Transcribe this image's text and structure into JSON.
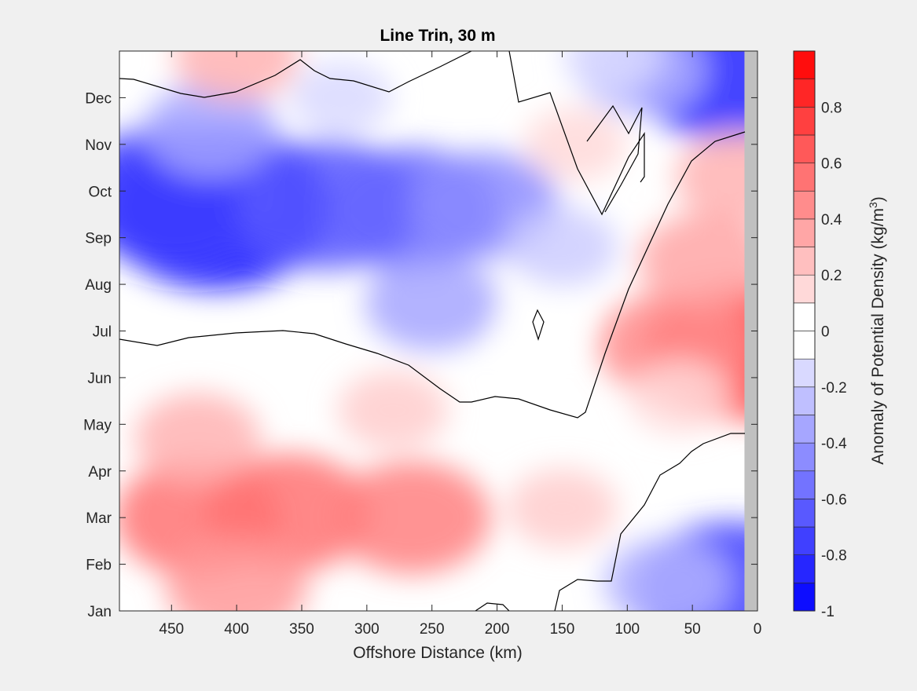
{
  "chart_data": {
    "type": "heatmap",
    "title": "Line Trin, 30 m",
    "xlabel": "Offshore Distance (km)",
    "x_ticks": [
      450,
      400,
      350,
      300,
      250,
      200,
      150,
      100,
      50,
      0
    ],
    "x_tick_labels": [
      "450",
      "400",
      "350",
      "300",
      "250",
      "200",
      "150",
      "100",
      "50",
      "0"
    ],
    "xlim": [
      490,
      0
    ],
    "x_direction": "reversed",
    "ylabel": "",
    "y_tick_labels": [
      "Jan",
      "Feb",
      "Mar",
      "Apr",
      "May",
      "Jun",
      "Jul",
      "Aug",
      "Sep",
      "Oct",
      "Nov",
      "Dec"
    ],
    "y_ticks_month": [
      1,
      2,
      3,
      4,
      5,
      6,
      7,
      8,
      9,
      10,
      11,
      12
    ],
    "ylim_month": [
      1,
      13
    ],
    "colorbar": {
      "label_prefix": "Anomaly of Potential Density (kg/m",
      "label_sup": "3",
      "label_suffix": ")",
      "range": [
        -1,
        1
      ],
      "step": 0.1,
      "tick_values": [
        -1,
        -0.8,
        -0.6,
        -0.4,
        -0.2,
        0,
        0.2,
        0.4,
        0.6,
        0.8
      ],
      "tick_labels": [
        "-1",
        "-0.8",
        "-0.6",
        "-0.4",
        "-0.2",
        "0",
        "0.2",
        "0.4",
        "0.6",
        "0.8"
      ],
      "colormap": "blue-white-red (diverging)"
    },
    "grid": false,
    "zero_contour": true,
    "no_data_region": {
      "x_range_km": [
        10,
        0
      ],
      "color": "#c0c0c0"
    },
    "anomaly_features": [
      {
        "x_km": 415,
        "month": 9.65,
        "value": -0.95
      },
      {
        "x_km": 450,
        "month": 9.9,
        "value": -0.75
      },
      {
        "x_km": 330,
        "month": 9.7,
        "value": -0.65
      },
      {
        "x_km": 265,
        "month": 9.6,
        "value": -0.6
      },
      {
        "x_km": 210,
        "month": 9.7,
        "value": -0.45
      },
      {
        "x_km": 420,
        "month": 11.3,
        "value": -0.35
      },
      {
        "x_km": 320,
        "month": 12.0,
        "value": -0.15
      },
      {
        "x_km": 150,
        "month": 8.8,
        "value": -0.2
      },
      {
        "x_km": 250,
        "month": 7.6,
        "value": -0.35
      },
      {
        "x_km": 20,
        "month": 12.7,
        "value": -0.85
      },
      {
        "x_km": 90,
        "month": 12.6,
        "value": -0.3
      },
      {
        "x_km": 20,
        "month": 1.4,
        "value": -0.75
      },
      {
        "x_km": 70,
        "month": 1.6,
        "value": -0.3
      },
      {
        "x_km": 400,
        "month": 12.9,
        "value": 0.3
      },
      {
        "x_km": 110,
        "month": 12.9,
        "value": -0.15
      },
      {
        "x_km": 430,
        "month": 3.0,
        "value": 0.55
      },
      {
        "x_km": 360,
        "month": 3.1,
        "value": 0.55
      },
      {
        "x_km": 265,
        "month": 3.0,
        "value": 0.5
      },
      {
        "x_km": 150,
        "month": 3.2,
        "value": 0.2
      },
      {
        "x_km": 430,
        "month": 4.7,
        "value": 0.3
      },
      {
        "x_km": 400,
        "month": 1.5,
        "value": 0.4
      },
      {
        "x_km": 280,
        "month": 5.3,
        "value": 0.2
      },
      {
        "x_km": 15,
        "month": 6.55,
        "value": 0.72
      },
      {
        "x_km": 65,
        "month": 6.7,
        "value": 0.45
      },
      {
        "x_km": 15,
        "month": 10.3,
        "value": 0.3
      },
      {
        "x_km": 40,
        "month": 8.5,
        "value": 0.35
      },
      {
        "x_km": 60,
        "month": 5.6,
        "value": 0.15
      },
      {
        "x_km": 140,
        "month": 11.0,
        "value": 0.15
      },
      {
        "x_km": 170,
        "month": 7.2,
        "value": 0.0
      }
    ]
  }
}
